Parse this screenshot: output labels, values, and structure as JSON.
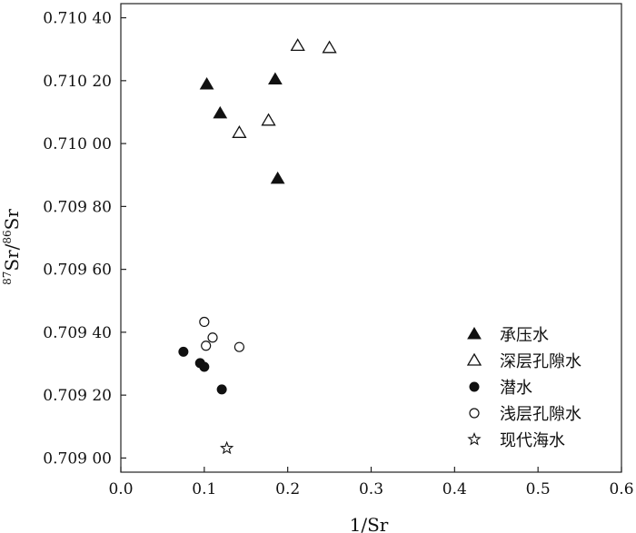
{
  "chart_data": {
    "type": "scatter",
    "xlabel": "1/Sr",
    "ylabel_parts": {
      "sup1": "87",
      "base1": "Sr/",
      "sup2": "86",
      "base2": "Sr"
    },
    "xlim": [
      0,
      0.6
    ],
    "ylim": [
      0.708955,
      0.710445
    ],
    "x_ticks": [
      0,
      0.1,
      0.2,
      0.3,
      0.4,
      0.5,
      0.6
    ],
    "x_tick_labels": [
      "0.0",
      "0.1",
      "0.2",
      "0.3",
      "0.4",
      "0.5",
      "0.6"
    ],
    "y_ticks": [
      0.709,
      0.7092,
      0.7094,
      0.7096,
      0.7098,
      0.71,
      0.7102,
      0.7104
    ],
    "y_tick_labels": [
      "0.709 00",
      "0.709 20",
      "0.709 40",
      "0.709 60",
      "0.709 80",
      "0.710 00",
      "0.710 20",
      "0.710 40"
    ],
    "grid": false,
    "legend_position": "bottom-right",
    "series": [
      {
        "name": "承压水",
        "marker": "filled-triangle",
        "points": [
          [
            0.103,
            0.710188
          ],
          [
            0.119,
            0.710096
          ],
          [
            0.185,
            0.710204
          ],
          [
            0.188,
            0.709888
          ]
        ]
      },
      {
        "name": "深层孔隙水",
        "marker": "open-triangle",
        "points": [
          [
            0.212,
            0.710311
          ],
          [
            0.25,
            0.710304
          ],
          [
            0.142,
            0.710034
          ],
          [
            0.177,
            0.710073
          ]
        ]
      },
      {
        "name": "潜水",
        "marker": "filled-circle",
        "points": [
          [
            0.075,
            0.709338
          ],
          [
            0.095,
            0.709302
          ],
          [
            0.1,
            0.70929
          ],
          [
            0.121,
            0.709218
          ]
        ]
      },
      {
        "name": "浅层孔隙水",
        "marker": "open-circle",
        "points": [
          [
            0.1,
            0.709433
          ],
          [
            0.102,
            0.709357
          ],
          [
            0.11,
            0.709383
          ],
          [
            0.142,
            0.709353
          ]
        ]
      },
      {
        "name": "现代海水",
        "marker": "open-star",
        "points": [
          [
            0.127,
            0.709031
          ]
        ]
      }
    ]
  }
}
